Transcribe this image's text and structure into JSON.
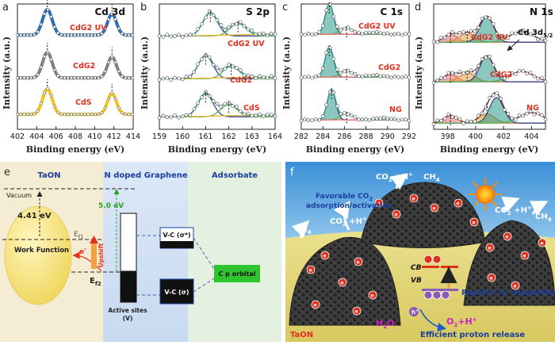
{
  "shared_axis": {
    "ylabel": "Intensity (a.u.)",
    "xlabel": "Binding energy (eV)"
  },
  "chart_data": [
    {
      "type": "line",
      "panel": "a",
      "title": "Cd 3d",
      "xlabel": "Binding energy (eV)",
      "ylabel": "Intensity (a.u.)",
      "xlim": [
        402,
        414
      ],
      "xticks": [
        402,
        404,
        406,
        408,
        410,
        412,
        414
      ],
      "peak_markers": [
        405.1,
        411.8
      ],
      "series": [
        {
          "name": "CdG2 UV",
          "color": "#2e6db4",
          "x": [
            402,
            403,
            404,
            404.5,
            405,
            405.5,
            406,
            407,
            408,
            409,
            410,
            411,
            411.5,
            411.8,
            412.2,
            413,
            414
          ],
          "y": [
            0.1,
            0.14,
            0.4,
            0.8,
            1.0,
            0.78,
            0.36,
            0.18,
            0.14,
            0.14,
            0.18,
            0.45,
            0.7,
            0.78,
            0.55,
            0.18,
            0.12
          ]
        },
        {
          "name": "CdG2",
          "color": "#808080",
          "x": [
            402,
            403,
            404,
            404.5,
            405,
            405.5,
            406,
            407,
            408,
            409,
            410,
            411,
            411.5,
            411.8,
            412.2,
            413,
            414
          ],
          "y": [
            0.1,
            0.14,
            0.4,
            0.8,
            1.0,
            0.78,
            0.36,
            0.18,
            0.14,
            0.14,
            0.18,
            0.45,
            0.7,
            0.78,
            0.55,
            0.18,
            0.12
          ]
        },
        {
          "name": "CdS",
          "color": "#f0c419",
          "x": [
            402,
            403,
            404,
            404.5,
            405,
            405.5,
            406,
            407,
            408,
            409,
            410,
            411,
            411.5,
            411.8,
            412.2,
            413,
            414
          ],
          "y": [
            0.1,
            0.14,
            0.4,
            0.8,
            1.0,
            0.78,
            0.36,
            0.18,
            0.14,
            0.14,
            0.18,
            0.45,
            0.7,
            0.78,
            0.55,
            0.18,
            0.12
          ]
        }
      ]
    },
    {
      "type": "line",
      "panel": "b",
      "title": "S 2p",
      "xlabel": "Binding energy (eV)",
      "ylabel": "Intensity (a.u.)",
      "xlim": [
        159,
        164
      ],
      "xticks": [
        159,
        160,
        161,
        162,
        163,
        164
      ],
      "series": [
        {
          "name": "CdG2 UV",
          "peaks": [
            161.2,
            162.4
          ]
        },
        {
          "name": "CdG2",
          "peaks": [
            161.0,
            162.1
          ]
        },
        {
          "name": "CdS",
          "peaks": [
            161.0,
            162.0
          ]
        }
      ]
    },
    {
      "type": "line",
      "panel": "c",
      "title": "C 1s",
      "xlabel": "Binding energy (eV)",
      "ylabel": "Intensity (a.u.)",
      "xlim": [
        282,
        292
      ],
      "xticks": [
        282,
        284,
        286,
        288,
        290,
        292
      ],
      "series": [
        {
          "name": "CdG2 UV",
          "peaks": [
            284.6,
            286.2,
            288.7
          ]
        },
        {
          "name": "CdG2",
          "peaks": [
            284.6,
            286.2,
            288.7
          ]
        },
        {
          "name": "NG",
          "peaks": [
            284.8,
            286.2,
            289.6
          ]
        }
      ]
    },
    {
      "type": "line",
      "panel": "d",
      "title": "N 1s",
      "xlabel": "Binding energy (eV)",
      "ylabel": "Intensity (a.u.)",
      "xlim": [
        397,
        405
      ],
      "xticks": [
        398,
        400,
        402,
        404
      ],
      "annotation": "Cd 3d5/2",
      "series": [
        {
          "name": "CdG2 UV",
          "peaks": [
            398.2,
            399.4,
            400.8
          ]
        },
        {
          "name": "CdG2",
          "peaks": [
            398.2,
            399.4,
            400.8
          ]
        },
        {
          "name": "NG",
          "peaks": [
            398.2,
            400.8,
            401.5
          ]
        }
      ]
    }
  ],
  "labels": {
    "cd3d_title": "Cd 3d",
    "s2p_title": "S 2p",
    "c1s_title": "C 1s",
    "n1s_title": "N 1s",
    "cdg2uv": "CdG2 UV",
    "cdg2": "CdG2",
    "cds": "CdS",
    "ng": "NG",
    "cd3d52_main": "Cd 3d",
    "cd3d52_sub": "5/2",
    "panel_a": "a",
    "panel_b": "b",
    "panel_c": "c",
    "panel_d": "d",
    "panel_e": "e",
    "panel_f": "f"
  },
  "panel_e": {
    "col1": "TaON",
    "col2": "N doped Graphene",
    "col3": "Adsorbate",
    "vacuum": "Vacuum",
    "work_fn_value": "4.41 eV",
    "graphene_value": "5.0 eV",
    "ef1_main": "E",
    "ef1_sub": "f1",
    "ef2_main": "E",
    "ef2_sub": "f2",
    "work_function": "Work Function",
    "electron": "e",
    "electron_sup": "-",
    "upshift": "Upshift",
    "vc_star": "V-C (σ*)",
    "vc": "V-C (σ)",
    "cp": "C p orbital",
    "active1": "Active sites",
    "active2": "(V)"
  },
  "panel_f": {
    "co2_h_1": "CO",
    "sub2": "2",
    "plus_h": " +H",
    "plus_sup": "+",
    "ch4_main": "CH",
    "sub4": "4",
    "favorable1": "Favorable CO",
    "favorable2": "adsorption/activation",
    "cb": "CB",
    "vb": "VB",
    "rapid": "Rapid h",
    "rapid_sup": "+",
    "rapid_mid": "/e",
    "rapid_sup2": "-",
    "rapid_end": " separation",
    "h": "h",
    "h_sup": "+",
    "h2o_main": "H",
    "h2o_end": "O",
    "o2_main": "O",
    "o2_end": "+H",
    "release": "Efficient proton release",
    "taon": "TaON",
    "e": "e",
    "e_sup": "-"
  },
  "colors": {
    "cdg2uv": "#2e6db4",
    "cdg2": "#808080",
    "cds": "#f0c419",
    "label_red": "#e0301e",
    "fit_purple": "#3a4a8a",
    "fit_green": "#5ab45a",
    "fit_teal": "#2a9a8a",
    "fit_yellow": "#e8b830",
    "fit_pink": "#e87070",
    "fit_orange": "#e08040",
    "blue_title": "#1a3fa0"
  }
}
